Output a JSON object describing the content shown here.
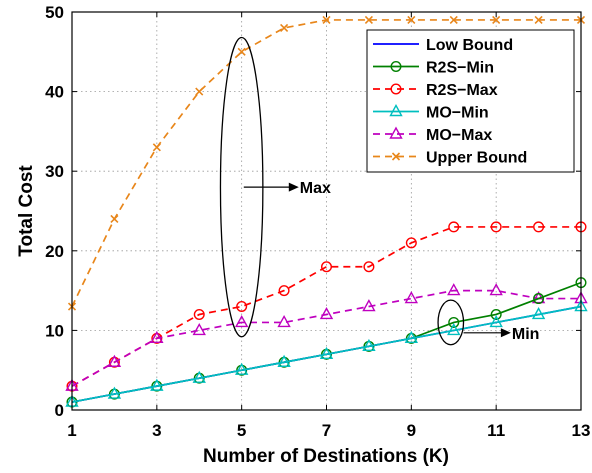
{
  "chart_data": {
    "type": "line",
    "title": "",
    "xlabel": "Number of Destinations (K)",
    "ylabel": "Total Cost",
    "xlim": [
      1,
      13
    ],
    "ylim": [
      0,
      50
    ],
    "xticks": [
      1,
      3,
      5,
      7,
      9,
      11,
      13
    ],
    "yticks": [
      0,
      10,
      20,
      30,
      40,
      50
    ],
    "grid": true,
    "legend_position": "top-right",
    "x": [
      1,
      2,
      3,
      4,
      5,
      6,
      7,
      8,
      9,
      10,
      11,
      12,
      13
    ],
    "series": [
      {
        "name": "Low Bound",
        "color": "#0000ff",
        "dash": "solid",
        "marker": "none",
        "values": [
          1,
          2,
          3,
          4,
          5,
          6,
          7,
          8,
          9,
          10,
          11,
          12,
          13
        ]
      },
      {
        "name": "R2S−Min",
        "color": "#008000",
        "dash": "solid",
        "marker": "circle",
        "values": [
          1,
          2,
          3,
          4,
          5,
          6,
          7,
          8,
          9,
          11,
          12,
          14,
          16
        ]
      },
      {
        "name": "R2S−Max",
        "color": "#ff0000",
        "dash": "dashed",
        "marker": "circle",
        "values": [
          3,
          6,
          9,
          12,
          13,
          15,
          18,
          18,
          21,
          23,
          23,
          23,
          23
        ]
      },
      {
        "name": "MO−Min",
        "color": "#00bfbf",
        "dash": "solid",
        "marker": "triangle",
        "values": [
          1,
          2,
          3,
          4,
          5,
          6,
          7,
          8,
          9,
          10,
          11,
          12,
          13
        ]
      },
      {
        "name": "MO−Max",
        "color": "#bf00bf",
        "dash": "dashed",
        "marker": "triangle",
        "values": [
          3,
          6,
          9,
          10,
          11,
          11,
          12,
          13,
          14,
          15,
          15,
          14,
          14
        ]
      },
      {
        "name": "Upper Bound",
        "color": "#e8861a",
        "dash": "dashed",
        "marker": "x",
        "values": [
          13,
          24,
          33,
          40,
          45,
          48,
          49,
          49,
          49,
          49,
          49,
          49,
          49
        ]
      }
    ],
    "annotations": [
      {
        "text": "Max",
        "ellipse_center": [
          5,
          28
        ],
        "ellipse_half_width": 0.5,
        "ellipse_half_height": 18.8,
        "arrow_from": [
          5.05,
          28
        ],
        "arrow_to": [
          6.3,
          28
        ]
      },
      {
        "text": "Min",
        "ellipse_center": [
          9.93,
          11.0
        ],
        "ellipse_half_width": 0.3,
        "ellipse_half_height": 2.8,
        "arrow_from": [
          10.23,
          9.7
        ],
        "arrow_to": [
          11.3,
          9.7
        ]
      }
    ]
  }
}
